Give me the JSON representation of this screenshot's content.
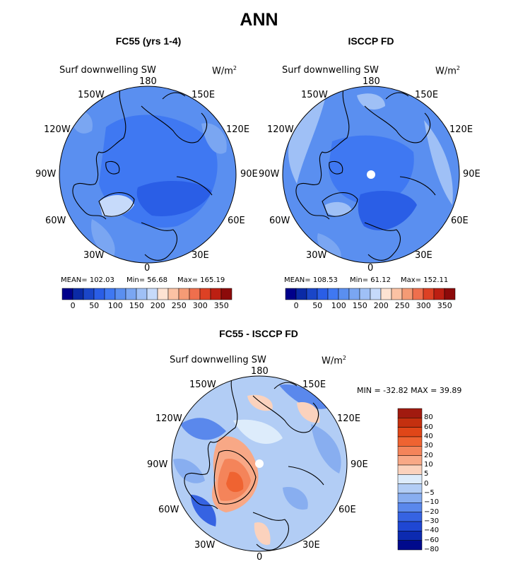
{
  "title": "ANN",
  "panels": [
    {
      "subtitle": "FC55 (yrs 1-4)",
      "field_label": "Surf downwelling SW",
      "units": "W/m",
      "units_exp": "2",
      "lon_labels": {
        "n": "180",
        "ne": "150E",
        "e1": "120E",
        "e2": "90E",
        "e3": "60E",
        "se": "30E",
        "s": "0",
        "sw": "30W",
        "w3": "60W",
        "w2": "90W",
        "w1": "120W",
        "nw": "150W"
      },
      "mean_text": "MEAN= 102.03",
      "min_text": "Min=   56.68",
      "max_text": "Max= 165.19",
      "colorbar_ticks": [
        "0",
        "50",
        "100",
        "150",
        "200",
        "250",
        "300",
        "350"
      ]
    },
    {
      "subtitle": "ISCCP FD",
      "field_label": "Surf downwelling SW",
      "units": "W/m",
      "units_exp": "2",
      "lon_labels": {
        "n": "180",
        "ne": "150E",
        "e1": "120E",
        "e2": "90E",
        "e3": "60E",
        "se": "30E",
        "s": "0",
        "sw": "30W",
        "w3": "60W",
        "w2": "90W",
        "w1": "120W",
        "nw": "150W"
      },
      "mean_text": "MEAN= 108.53",
      "min_text": "Min=   61.12",
      "max_text": "Max= 152.11",
      "colorbar_ticks": [
        "0",
        "50",
        "100",
        "150",
        "200",
        "250",
        "300",
        "350"
      ]
    },
    {
      "subtitle": "FC55 - ISCCP FD",
      "field_label": "Surf downwelling SW",
      "units": "W/m",
      "units_exp": "2",
      "lon_labels": {
        "n": "180",
        "ne": "150E",
        "e1": "120E",
        "e2": "90E",
        "e3": "60E",
        "se": "30E",
        "s": "0",
        "sw": "30W",
        "w3": "60W",
        "w2": "90W",
        "w1": "120W",
        "nw": "150W"
      },
      "minmax_text": "MIN = -32.82  MAX =   39.89",
      "colorbar_ticks": [
        "80",
        "60",
        "40",
        "30",
        "20",
        "10",
        "5",
        "0",
        "−5",
        "−10",
        "−20",
        "−30",
        "−40",
        "−60",
        "−80"
      ]
    }
  ],
  "colors": {
    "abs_scale": [
      "#00008b",
      "#0a2aa6",
      "#1a46c8",
      "#2a5ee6",
      "#3f78f2",
      "#5a8ff0",
      "#7aa6f2",
      "#9fc0f6",
      "#c6dafa",
      "#fde3d3",
      "#fbc2a4",
      "#f59b75",
      "#ef6f4d",
      "#dd4124",
      "#bc1f12",
      "#8c0a0a"
    ],
    "diff_scale": [
      "#a11a0f",
      "#c4300f",
      "#e04618",
      "#ef6331",
      "#f4845a",
      "#f8a886",
      "#fbd2bd",
      "#ddecfb",
      "#b2cdf5",
      "#88aef0",
      "#5a88ec",
      "#3663e2",
      "#1f47d3",
      "#0c2ab0",
      "#000a8c"
    ],
    "land_line": "#000000",
    "pole_hole": "#ffffff"
  }
}
